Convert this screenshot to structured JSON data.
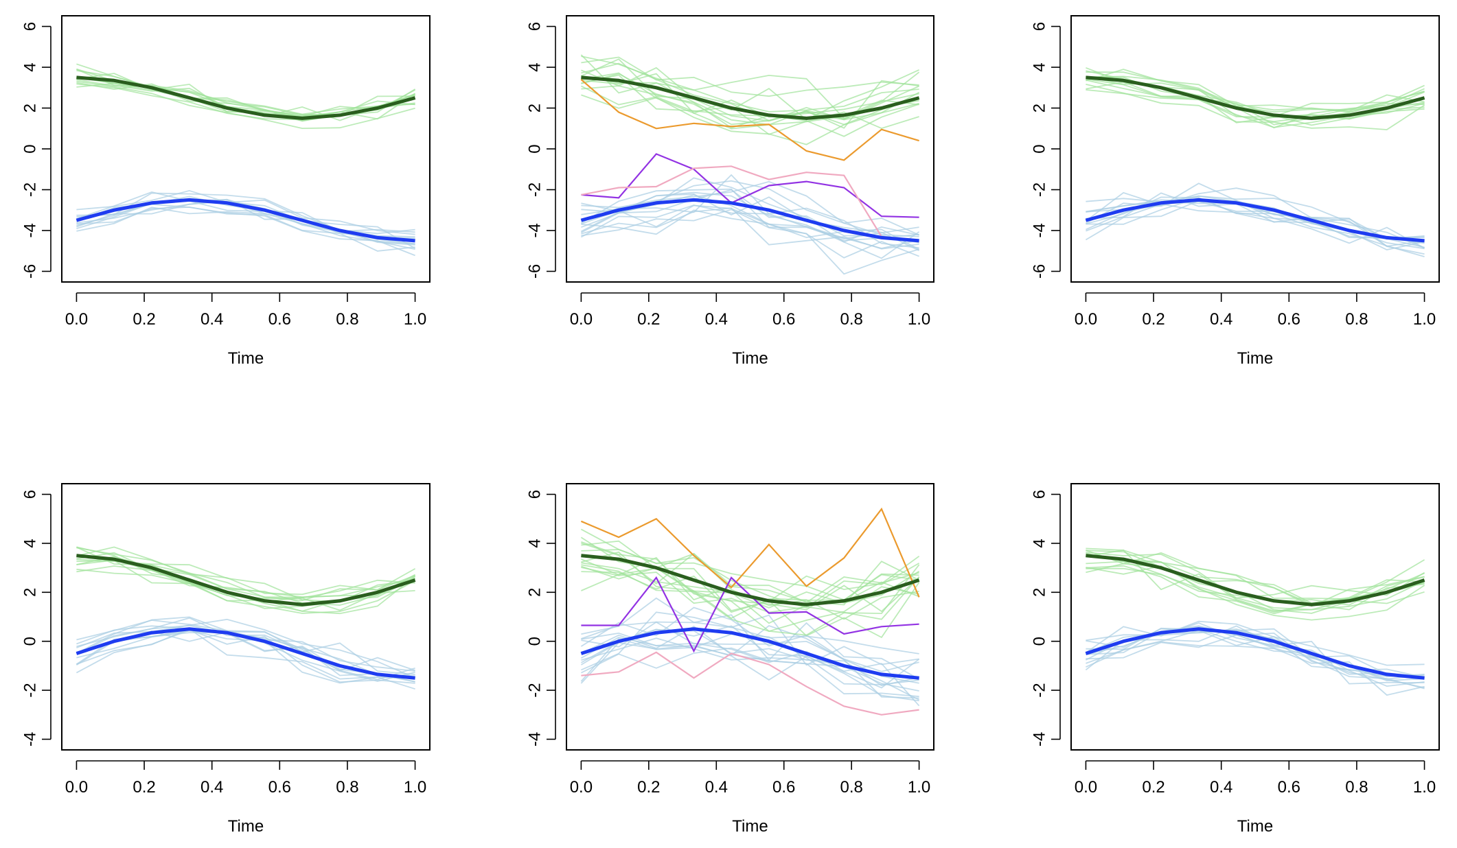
{
  "colors": {
    "green_mean": "#2a5e1e",
    "blue_mean": "#1e3cf0",
    "green_bg": "#9fe39a",
    "blue_bg": "#a9cde3",
    "orange": "#eb9a2d",
    "purple": "#9232e3",
    "pink": "#f0a9c0"
  },
  "time_points": [
    0,
    0.1111,
    0.2222,
    0.3333,
    0.4444,
    0.5556,
    0.6667,
    0.7778,
    0.8889,
    1.0
  ],
  "chart_data": [
    {
      "type": "line",
      "panel": "top-left",
      "xlabel": "Time",
      "ylabel": "",
      "xlim": [
        0,
        1
      ],
      "ylim": [
        -6,
        6
      ],
      "xticks": [
        "0.0",
        "0.2",
        "0.4",
        "0.6",
        "0.8",
        "1.0"
      ],
      "yticks": [
        "-6",
        "-4",
        "-2",
        "0",
        "2",
        "4",
        "6"
      ],
      "ytick_values": [
        -6,
        -4,
        -2,
        0,
        2,
        4,
        6
      ],
      "series": [
        {
          "name": "mean-green",
          "values": [
            3.5,
            3.35,
            3.0,
            2.5,
            2.0,
            1.65,
            1.5,
            1.65,
            2.0,
            2.5
          ]
        },
        {
          "name": "mean-blue",
          "values": [
            -3.5,
            -3.0,
            -2.65,
            -2.5,
            -2.65,
            -3.0,
            -3.5,
            -4.0,
            -4.35,
            -4.5
          ]
        }
      ],
      "outliers": [],
      "noise": {
        "green": 0.35,
        "blue": 0.35,
        "count": 12
      }
    },
    {
      "type": "line",
      "panel": "top-middle",
      "xlabel": "Time",
      "ylabel": "",
      "xlim": [
        0,
        1
      ],
      "ylim": [
        -6,
        6
      ],
      "xticks": [
        "0.0",
        "0.2",
        "0.4",
        "0.6",
        "0.8",
        "1.0"
      ],
      "yticks": [
        "-6",
        "-4",
        "-2",
        "0",
        "2",
        "4",
        "6"
      ],
      "ytick_values": [
        -6,
        -4,
        -2,
        0,
        2,
        4,
        6
      ],
      "series": [
        {
          "name": "mean-green",
          "values": [
            3.5,
            3.35,
            3.0,
            2.5,
            2.0,
            1.65,
            1.5,
            1.65,
            2.0,
            2.5
          ]
        },
        {
          "name": "mean-blue",
          "values": [
            -3.5,
            -3.0,
            -2.65,
            -2.5,
            -2.65,
            -3.0,
            -3.5,
            -4.0,
            -4.35,
            -4.5
          ]
        }
      ],
      "outliers": [
        {
          "name": "outlier-orange",
          "color": "orange",
          "values": [
            3.4,
            1.8,
            1.0,
            1.25,
            1.1,
            1.2,
            -0.1,
            -0.55,
            0.95,
            0.4
          ]
        },
        {
          "name": "outlier-purple",
          "color": "purple",
          "values": [
            -2.25,
            -2.4,
            -0.25,
            -1.0,
            -2.65,
            -1.8,
            -1.6,
            -1.9,
            -3.3,
            -3.35
          ]
        },
        {
          "name": "outlier-pink",
          "color": "pink",
          "values": [
            -2.25,
            -1.9,
            -1.85,
            -0.95,
            -0.85,
            -1.5,
            -1.15,
            -1.3,
            -4.3,
            -4.55
          ]
        }
      ],
      "noise": {
        "green": 0.8,
        "blue": 0.8,
        "count": 14
      }
    },
    {
      "type": "line",
      "panel": "top-right",
      "xlabel": "Time",
      "ylabel": "",
      "xlim": [
        0,
        1
      ],
      "ylim": [
        -6,
        6
      ],
      "xticks": [
        "0.0",
        "0.2",
        "0.4",
        "0.6",
        "0.8",
        "1.0"
      ],
      "yticks": [
        "-6",
        "-4",
        "-2",
        "0",
        "2",
        "4",
        "6"
      ],
      "ytick_values": [
        -6,
        -4,
        -2,
        0,
        2,
        4,
        6
      ],
      "series": [
        {
          "name": "mean-green",
          "values": [
            3.5,
            3.35,
            3.0,
            2.5,
            2.0,
            1.65,
            1.5,
            1.65,
            2.0,
            2.5
          ]
        },
        {
          "name": "mean-blue",
          "values": [
            -3.5,
            -3.0,
            -2.65,
            -2.5,
            -2.65,
            -3.0,
            -3.5,
            -4.0,
            -4.35,
            -4.5
          ]
        }
      ],
      "outliers": [],
      "noise": {
        "green": 0.45,
        "blue": 0.5,
        "count": 12
      }
    },
    {
      "type": "line",
      "panel": "bottom-left",
      "xlabel": "Time",
      "ylabel": "",
      "xlim": [
        0,
        1
      ],
      "ylim": [
        -4,
        6
      ],
      "xticks": [
        "0.0",
        "0.2",
        "0.4",
        "0.6",
        "0.8",
        "1.0"
      ],
      "yticks": [
        "-4",
        "-2",
        "0",
        "2",
        "4",
        "6"
      ],
      "ytick_values": [
        -4,
        -2,
        0,
        2,
        4,
        6
      ],
      "series": [
        {
          "name": "mean-green",
          "values": [
            3.5,
            3.35,
            3.0,
            2.5,
            2.0,
            1.65,
            1.5,
            1.65,
            2.0,
            2.5
          ]
        },
        {
          "name": "mean-blue",
          "values": [
            -0.5,
            0.0,
            0.35,
            0.5,
            0.35,
            0.0,
            -0.5,
            -1.0,
            -1.35,
            -1.5
          ]
        }
      ],
      "outliers": [],
      "noise": {
        "green": 0.35,
        "blue": 0.4,
        "count": 12
      }
    },
    {
      "type": "line",
      "panel": "bottom-middle",
      "xlabel": "Time",
      "ylabel": "",
      "xlim": [
        0,
        1
      ],
      "ylim": [
        -4,
        6
      ],
      "xticks": [
        "0.0",
        "0.2",
        "0.4",
        "0.6",
        "0.8",
        "1.0"
      ],
      "yticks": [
        "-4",
        "-2",
        "0",
        "2",
        "4",
        "6"
      ],
      "ytick_values": [
        -4,
        -2,
        0,
        2,
        4,
        6
      ],
      "series": [
        {
          "name": "mean-green",
          "values": [
            3.5,
            3.35,
            3.0,
            2.5,
            2.0,
            1.65,
            1.5,
            1.65,
            2.0,
            2.5
          ]
        },
        {
          "name": "mean-blue",
          "values": [
            -0.5,
            0.0,
            0.35,
            0.5,
            0.35,
            0.0,
            -0.5,
            -1.0,
            -1.35,
            -1.5
          ]
        }
      ],
      "outliers": [
        {
          "name": "outlier-orange",
          "color": "orange",
          "values": [
            4.9,
            4.25,
            5.0,
            3.5,
            2.2,
            3.95,
            2.25,
            3.4,
            5.4,
            1.8
          ]
        },
        {
          "name": "outlier-purple",
          "color": "purple",
          "values": [
            0.65,
            0.65,
            2.6,
            -0.4,
            2.6,
            1.15,
            1.2,
            0.3,
            0.6,
            0.7
          ]
        },
        {
          "name": "outlier-pink",
          "color": "pink",
          "values": [
            -1.4,
            -1.25,
            -0.45,
            -1.5,
            -0.5,
            -0.95,
            -1.85,
            -2.65,
            -3.0,
            -2.8
          ]
        }
      ],
      "noise": {
        "green": 0.8,
        "blue": 0.8,
        "count": 14
      }
    },
    {
      "type": "line",
      "panel": "bottom-right",
      "xlabel": "Time",
      "ylabel": "",
      "xlim": [
        0,
        1
      ],
      "ylim": [
        -4,
        6
      ],
      "xticks": [
        "0.0",
        "0.2",
        "0.4",
        "0.6",
        "0.8",
        "1.0"
      ],
      "yticks": [
        "-4",
        "-2",
        "0",
        "2",
        "4",
        "6"
      ],
      "ytick_values": [
        -4,
        -2,
        0,
        2,
        4,
        6
      ],
      "series": [
        {
          "name": "mean-green",
          "values": [
            3.5,
            3.35,
            3.0,
            2.5,
            2.0,
            1.65,
            1.5,
            1.65,
            2.0,
            2.5
          ]
        },
        {
          "name": "mean-blue",
          "values": [
            -0.5,
            0.0,
            0.35,
            0.5,
            0.35,
            0.0,
            -0.5,
            -1.0,
            -1.35,
            -1.5
          ]
        }
      ],
      "outliers": [],
      "noise": {
        "green": 0.45,
        "blue": 0.45,
        "count": 12
      }
    }
  ]
}
